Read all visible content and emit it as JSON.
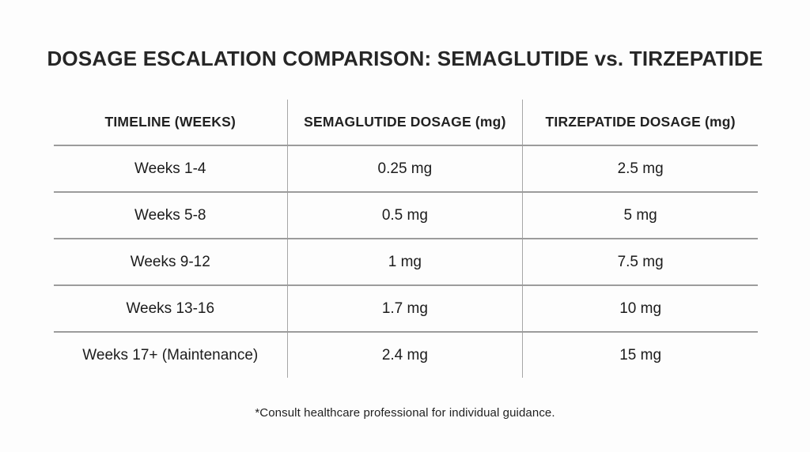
{
  "chart_data": {
    "type": "table",
    "title": "DOSAGE ESCALATION COMPARISON: SEMAGLUTIDE vs. TIRZEPATIDE",
    "columns": [
      "TIMELINE (WEEKS)",
      "SEMAGLUTIDE DOSAGE (mg)",
      "TIRZEPATIDE DOSAGE (mg)"
    ],
    "rows": [
      [
        "Weeks 1-4",
        "0.25 mg",
        "2.5 mg"
      ],
      [
        "Weeks 5-8",
        "0.5 mg",
        "5 mg"
      ],
      [
        "Weeks 9-12",
        "1 mg",
        "7.5 mg"
      ],
      [
        "Weeks 13-16",
        "1.7 mg",
        "10 mg"
      ],
      [
        "Weeks 17+ (Maintenance)",
        "2.4 mg",
        "15 mg"
      ]
    ],
    "legend": "none",
    "grid": "inner horizontal and vertical rules only, no outer border"
  },
  "footnote": "*Consult healthcare professional for individual guidance.",
  "colors": {
    "background": "#fdfdfd",
    "text": "#1c1c1c",
    "horizontal_rule": "#9c9c9c",
    "vertical_rule": "#a6a6a6"
  }
}
